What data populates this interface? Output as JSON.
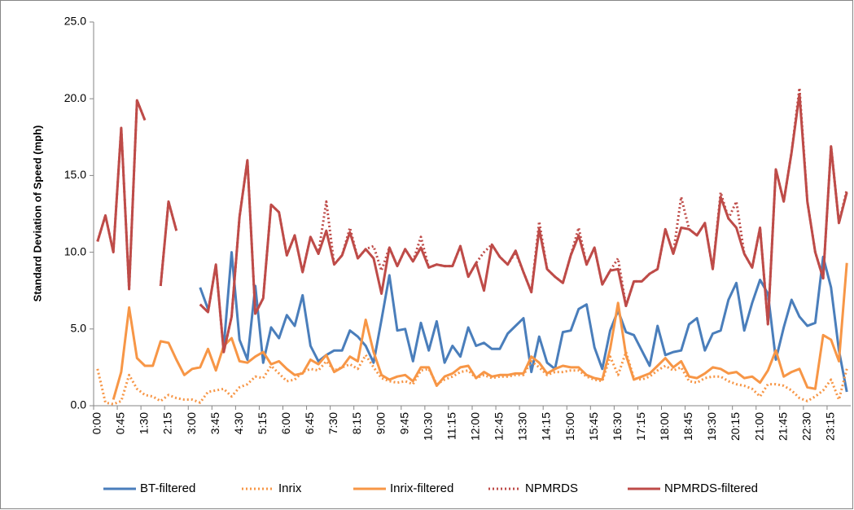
{
  "chart_data": {
    "type": "line",
    "y_label": "Standard Deviation of Speed (mph)",
    "categories": [
      "0:00",
      null,
      null,
      "0:45",
      null,
      null,
      "1:30",
      null,
      null,
      "2:15",
      null,
      null,
      "3:00",
      null,
      null,
      "3:45",
      null,
      null,
      "4:30",
      null,
      null,
      "5:15",
      null,
      null,
      "6:00",
      null,
      null,
      "6:45",
      null,
      null,
      "7:30",
      null,
      null,
      "8:15",
      null,
      null,
      "9:00",
      null,
      null,
      "9:45",
      null,
      null,
      "10:30",
      null,
      null,
      "11:15",
      null,
      null,
      "12:00",
      null,
      null,
      "12:45",
      null,
      null,
      "13:30",
      null,
      null,
      "14:15",
      null,
      null,
      "15:00",
      null,
      null,
      "15:45",
      null,
      null,
      "16:30",
      null,
      null,
      "17:15",
      null,
      null,
      "18:00",
      null,
      null,
      "18:45",
      null,
      null,
      "19:30",
      null,
      null,
      "20:15",
      null,
      null,
      "21:00",
      null,
      null,
      "21:45",
      null,
      null,
      "22:30",
      null,
      null,
      "23:15",
      null,
      null
    ],
    "ylim": [
      0,
      25
    ],
    "yticks": [
      {
        "value": 0,
        "label": "0.0"
      },
      {
        "value": 5,
        "label": "5.0"
      },
      {
        "value": 10,
        "label": "10.0"
      },
      {
        "value": 15,
        "label": "15.0"
      },
      {
        "value": 20,
        "label": "20.0"
      },
      {
        "value": 25,
        "label": "25.0"
      }
    ],
    "grid": false,
    "legend": "bottom",
    "series": [
      {
        "name": "BT-filtered",
        "color": "#4a7ebb",
        "line_style": "solid",
        "values": [
          null,
          null,
          null,
          null,
          null,
          null,
          null,
          null,
          null,
          null,
          null,
          null,
          null,
          7.7,
          6.3,
          null,
          3.8,
          10.0,
          4.3,
          3.0,
          7.8,
          2.8,
          5.1,
          4.4,
          5.9,
          5.2,
          7.2,
          3.9,
          2.9,
          3.3,
          3.6,
          3.6,
          4.9,
          4.5,
          3.9,
          2.8,
          5.6,
          8.5,
          4.9,
          5.0,
          2.9,
          5.4,
          3.6,
          5.5,
          2.8,
          3.9,
          3.2,
          5.1,
          3.9,
          4.1,
          3.7,
          3.7,
          4.7,
          5.2,
          5.7,
          2.2,
          4.5,
          2.8,
          2.4,
          4.8,
          4.9,
          6.3,
          6.6,
          3.8,
          2.4,
          4.9,
          6.2,
          4.8,
          4.6,
          3.6,
          2.6,
          5.2,
          3.3,
          3.5,
          3.6,
          5.3,
          5.7,
          3.6,
          4.7,
          4.9,
          6.9,
          8.0,
          4.9,
          6.7,
          8.2,
          7.3,
          3.0,
          5.1,
          6.9,
          5.8,
          5.2,
          5.4,
          9.7,
          7.7,
          3.6,
          0.9
        ]
      },
      {
        "name": "Inrix",
        "color": "#f79646",
        "line_style": "dotted",
        "values": [
          2.4,
          0.2,
          0.1,
          0.3,
          2.0,
          1.1,
          0.7,
          0.6,
          0.3,
          0.7,
          0.5,
          0.4,
          0.4,
          0.2,
          0.9,
          1.0,
          1.1,
          0.6,
          1.2,
          1.4,
          1.9,
          1.8,
          2.6,
          2.1,
          1.6,
          1.7,
          2.2,
          2.4,
          2.3,
          2.9,
          2.3,
          2.5,
          2.7,
          2.4,
          3.3,
          2.5,
          1.8,
          1.6,
          1.5,
          1.6,
          1.4,
          2.3,
          2.4,
          1.4,
          1.7,
          1.9,
          2.2,
          2.3,
          1.8,
          2.0,
          1.8,
          1.9,
          1.9,
          2.0,
          2.0,
          2.9,
          2.5,
          2.0,
          2.2,
          2.2,
          2.3,
          2.3,
          1.9,
          1.7,
          1.6,
          3.2,
          2.0,
          3.5,
          1.8,
          1.7,
          1.9,
          2.3,
          2.6,
          2.3,
          2.5,
          1.6,
          1.5,
          1.8,
          1.9,
          1.9,
          1.6,
          1.4,
          1.3,
          1.1,
          0.6,
          1.4,
          1.4,
          1.3,
          1.0,
          0.5,
          0.3,
          0.6,
          1.0,
          1.7,
          0.4,
          2.4
        ]
      },
      {
        "name": "Inrix-filtered",
        "color": "#f79646",
        "line_style": "solid",
        "values": [
          null,
          null,
          0.4,
          2.2,
          6.4,
          3.1,
          2.6,
          2.6,
          4.2,
          4.1,
          3.0,
          2.0,
          2.4,
          2.5,
          3.7,
          2.3,
          3.9,
          4.4,
          2.9,
          2.8,
          3.2,
          3.5,
          2.7,
          2.9,
          2.4,
          2.0,
          2.1,
          3.0,
          2.7,
          3.3,
          2.2,
          2.5,
          3.2,
          2.9,
          5.6,
          3.5,
          2.0,
          1.7,
          1.9,
          2.0,
          1.6,
          2.5,
          2.5,
          1.3,
          1.9,
          2.1,
          2.5,
          2.6,
          1.8,
          2.2,
          1.9,
          2.0,
          2.0,
          2.1,
          2.1,
          3.2,
          2.8,
          2.1,
          2.4,
          2.6,
          2.5,
          2.5,
          2.0,
          1.8,
          1.7,
          3.7,
          6.7,
          3.3,
          1.7,
          1.9,
          2.1,
          2.6,
          3.1,
          2.5,
          2.9,
          1.9,
          1.8,
          2.1,
          2.5,
          2.4,
          2.1,
          2.2,
          1.8,
          1.9,
          1.5,
          2.3,
          3.6,
          1.9,
          2.2,
          2.4,
          1.2,
          1.1,
          4.6,
          4.3,
          2.9,
          9.3
        ]
      },
      {
        "name": "NPMRDS",
        "color": "#be4b48",
        "line_style": "dotted",
        "values": [
          10.7,
          12.4,
          10.0,
          18.1,
          7.6,
          19.9,
          18.6,
          null,
          7.8,
          13.3,
          11.4,
          null,
          null,
          6.6,
          6.1,
          9.2,
          3.5,
          5.8,
          12.3,
          16.0,
          6.0,
          7.0,
          13.1,
          12.6,
          9.8,
          11.1,
          8.7,
          11.0,
          9.9,
          13.3,
          9.2,
          9.8,
          11.6,
          9.6,
          10.2,
          10.4,
          8.8,
          10.3,
          9.1,
          10.2,
          9.4,
          11.0,
          9.0,
          9.2,
          9.1,
          9.1,
          10.4,
          8.4,
          9.3,
          10.0,
          10.5,
          9.7,
          9.2,
          10.0,
          8.7,
          7.4,
          12.0,
          8.9,
          8.4,
          8.0,
          9.8,
          11.6,
          9.2,
          10.3,
          7.9,
          8.8,
          9.6,
          6.5,
          8.1,
          8.1,
          8.6,
          8.9,
          11.5,
          9.9,
          13.6,
          11.5,
          11.1,
          11.9,
          8.9,
          13.9,
          12.2,
          13.3,
          9.9,
          9.0,
          11.6,
          5.3,
          15.4,
          13.3,
          16.5,
          20.7,
          13.3,
          10.0,
          8.3,
          16.9,
          11.9,
          14.1
        ]
      },
      {
        "name": "NPMRDS-filtered",
        "color": "#be4b48",
        "line_style": "solid",
        "values": [
          10.7,
          12.4,
          10.0,
          18.1,
          7.6,
          19.9,
          18.6,
          null,
          7.8,
          13.3,
          11.4,
          null,
          null,
          6.6,
          6.1,
          9.2,
          3.5,
          5.8,
          12.3,
          16.0,
          6.0,
          7.0,
          13.1,
          12.6,
          9.8,
          11.1,
          8.7,
          11.0,
          9.9,
          11.4,
          9.2,
          9.8,
          11.3,
          9.6,
          10.2,
          9.6,
          7.3,
          10.3,
          9.1,
          10.2,
          9.4,
          10.3,
          9.0,
          9.2,
          9.1,
          9.1,
          10.4,
          8.4,
          9.3,
          7.5,
          10.5,
          9.7,
          9.2,
          10.1,
          8.7,
          7.4,
          11.5,
          8.9,
          8.4,
          8.0,
          9.8,
          11.1,
          9.2,
          10.3,
          7.9,
          8.8,
          8.9,
          6.5,
          8.1,
          8.1,
          8.6,
          8.9,
          11.5,
          9.9,
          11.6,
          11.5,
          11.1,
          11.9,
          8.9,
          13.6,
          12.2,
          11.6,
          9.9,
          9.0,
          11.6,
          5.3,
          15.4,
          13.3,
          16.5,
          20.3,
          13.3,
          10.0,
          8.3,
          16.9,
          11.9,
          13.9
        ]
      }
    ]
  }
}
